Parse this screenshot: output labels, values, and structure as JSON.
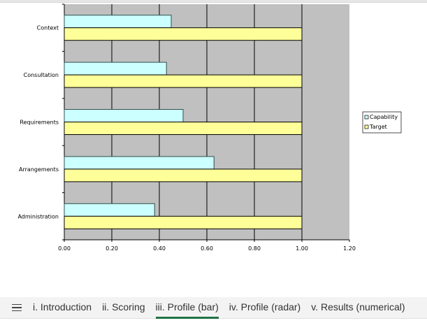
{
  "chart_data": {
    "type": "bar",
    "orientation": "horizontal",
    "categories": [
      "Context",
      "Consultation",
      "Requirements",
      "Arrangements",
      "Administration"
    ],
    "series": [
      {
        "name": "Capability",
        "values": [
          0.45,
          0.43,
          0.5,
          0.63,
          0.38
        ],
        "color": "#ccffff"
      },
      {
        "name": "Target",
        "values": [
          1.0,
          1.0,
          1.0,
          1.0,
          1.0
        ],
        "color": "#ffff99"
      }
    ],
    "xlim": [
      0,
      1.2
    ],
    "xticks": [
      "0.00",
      "0.20",
      "0.40",
      "0.60",
      "0.80",
      "1.00",
      "1.20"
    ],
    "grid": true,
    "legend": "right",
    "plot_bg": "#c0c0c0"
  },
  "tabs": [
    {
      "label": "i. Introduction",
      "active": false
    },
    {
      "label": "ii. Scoring",
      "active": false
    },
    {
      "label": "iii. Profile (bar)",
      "active": true
    },
    {
      "label": "iv. Profile (radar)",
      "active": false
    },
    {
      "label": "v. Results (numerical)",
      "active": false
    }
  ]
}
